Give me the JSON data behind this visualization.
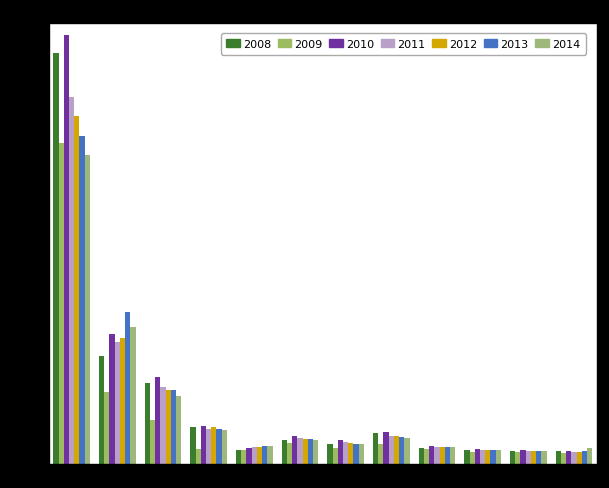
{
  "years": [
    "2008",
    "2009",
    "2010",
    "2011",
    "2012",
    "2013",
    "2014"
  ],
  "colors": [
    "#3a7d2c",
    "#9dbb61",
    "#7030a0",
    "#b8a0c8",
    "#d4a800",
    "#4472c4",
    "#9db87a"
  ],
  "n_cats": 12,
  "values": {
    "2008": [
      4200,
      1100,
      820,
      370,
      135,
      240,
      200,
      310,
      160,
      135,
      130,
      125
    ],
    "2009": [
      3280,
      730,
      450,
      145,
      140,
      215,
      155,
      205,
      150,
      120,
      118,
      112
    ],
    "2010": [
      4380,
      1320,
      880,
      385,
      155,
      280,
      240,
      320,
      175,
      145,
      135,
      125
    ],
    "2011": [
      3750,
      1240,
      780,
      350,
      165,
      260,
      220,
      285,
      170,
      140,
      128,
      118
    ],
    "2012": [
      3550,
      1280,
      750,
      370,
      165,
      255,
      210,
      280,
      165,
      138,
      125,
      118
    ],
    "2013": [
      3350,
      1550,
      750,
      355,
      175,
      250,
      205,
      270,
      165,
      140,
      130,
      125
    ],
    "2014": [
      3150,
      1400,
      690,
      345,
      175,
      245,
      200,
      260,
      165,
      138,
      128,
      155
    ]
  },
  "background_color": "#000000",
  "plot_bg_color": "#ffffff",
  "grid_color": "#d0d0d0",
  "ylim": [
    0,
    4500
  ],
  "figsize": [
    6.09,
    4.89
  ],
  "dpi": 100
}
